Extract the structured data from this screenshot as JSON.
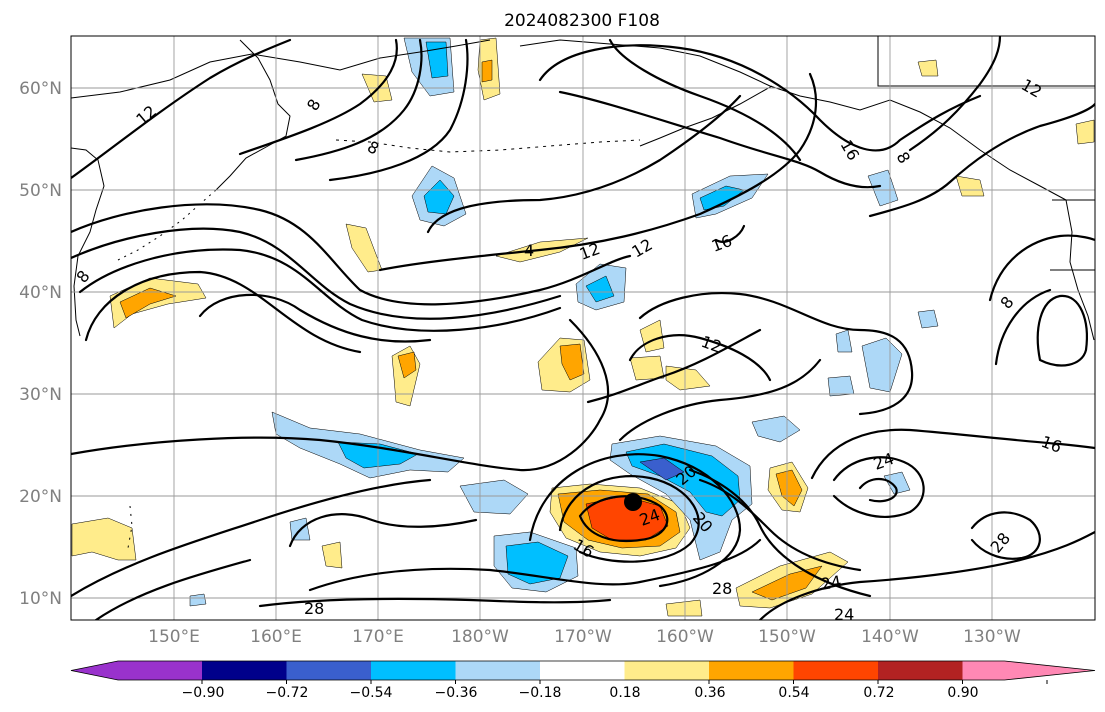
{
  "title": "2024082300 F108",
  "lon_ticks": [
    "150°E",
    "160°E",
    "170°E",
    "180°W",
    "170°W",
    "160°W",
    "150°W",
    "140°W",
    "130°W"
  ],
  "lat_ticks": [
    "60°N",
    "50°N",
    "40°N",
    "30°N",
    "20°N",
    "10°N"
  ],
  "colorbar": {
    "colors": [
      "#9932cc",
      "#00008b",
      "#3a5fcd",
      "#00bfff",
      "#add8f7",
      "#ffffff",
      "#ffec8b",
      "#ffa500",
      "#ff4500",
      "#b22222",
      "#ff88b4"
    ],
    "ticks": [
      "−0.90",
      "−0.72",
      "−0.54",
      "−0.36",
      "−0.18",
      "0.18",
      "0.36",
      "0.54",
      "0.72",
      "0.90"
    ]
  },
  "contour_labels": [
    "12",
    "8",
    "8",
    "16",
    "8",
    "12",
    "4",
    "12",
    "12",
    "16",
    "8",
    "12",
    "8",
    "16",
    "24",
    "20",
    "24",
    "16",
    "20",
    "28",
    "28",
    "24",
    "24",
    "28"
  ],
  "storm_marker": {
    "lon": -165,
    "lat": 19.3
  }
}
